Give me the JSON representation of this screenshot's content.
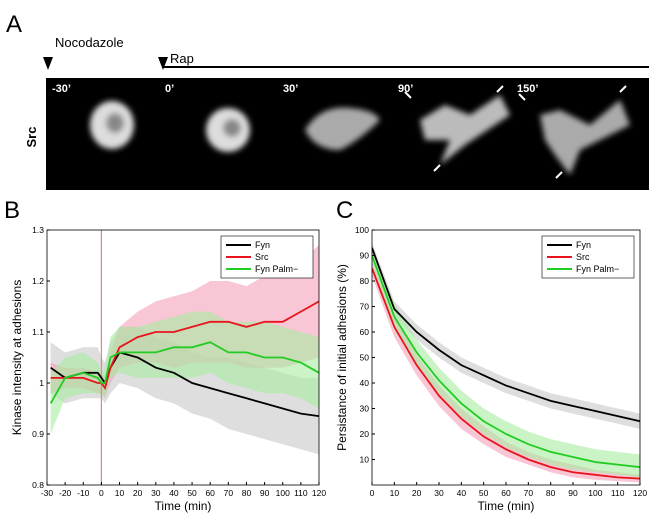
{
  "panel_a": {
    "label": "A",
    "drugs": [
      "Nocodazole",
      "Rap"
    ],
    "row_label": "Src",
    "times": [
      "-30’",
      "0’",
      "30’",
      "90’",
      "150’"
    ]
  },
  "chart_data": [
    {
      "type": "line",
      "panel": "B",
      "x_label": "Time (min)",
      "y_label": "Kinase intensity at adhesions",
      "x": [
        -28,
        -20,
        -10,
        -2,
        0,
        2,
        5,
        10,
        20,
        30,
        40,
        50,
        60,
        70,
        80,
        90,
        100,
        110,
        120
      ],
      "xlim": [
        -30,
        120
      ],
      "xticks": [
        -30,
        -20,
        -10,
        0,
        10,
        20,
        30,
        40,
        50,
        60,
        70,
        80,
        90,
        100,
        110,
        120
      ],
      "ylim": [
        0.8,
        1.3
      ],
      "yticks": [
        0.8,
        0.9,
        1,
        1.1,
        1.2,
        1.3
      ],
      "vline": 0,
      "vline_color": "#e88080",
      "legend": "upper right",
      "series": [
        {
          "name": "Fyn",
          "color": "#000000",
          "band_color": "#c8c8c8",
          "values": [
            1.03,
            1.01,
            1.02,
            1.02,
            1.01,
            1.0,
            1.03,
            1.06,
            1.05,
            1.03,
            1.02,
            1.0,
            0.99,
            0.98,
            0.97,
            0.96,
            0.95,
            0.94,
            0.935
          ],
          "lower": [
            0.98,
            0.96,
            0.97,
            0.97,
            0.97,
            0.96,
            0.98,
            1.0,
            0.99,
            0.97,
            0.96,
            0.94,
            0.93,
            0.91,
            0.9,
            0.89,
            0.88,
            0.87,
            0.86
          ],
          "upper": [
            1.08,
            1.06,
            1.07,
            1.07,
            1.05,
            1.04,
            1.08,
            1.11,
            1.11,
            1.09,
            1.08,
            1.06,
            1.05,
            1.05,
            1.04,
            1.03,
            1.02,
            1.01,
            1.01
          ]
        },
        {
          "name": "Src",
          "color": "#e8141c",
          "band_color": "#f4a0b8",
          "values": [
            1.01,
            1.01,
            1.01,
            1.0,
            1.0,
            0.99,
            1.03,
            1.07,
            1.09,
            1.1,
            1.1,
            1.11,
            1.12,
            1.12,
            1.11,
            1.12,
            1.12,
            1.14,
            1.16
          ],
          "lower": [
            0.98,
            0.99,
            0.99,
            0.98,
            0.98,
            0.97,
            1.0,
            1.03,
            1.04,
            1.04,
            1.03,
            1.04,
            1.04,
            1.04,
            1.03,
            1.03,
            1.03,
            1.04,
            1.05
          ],
          "upper": [
            1.04,
            1.03,
            1.03,
            1.02,
            1.02,
            1.01,
            1.06,
            1.11,
            1.14,
            1.16,
            1.17,
            1.18,
            1.2,
            1.2,
            1.19,
            1.21,
            1.21,
            1.24,
            1.27
          ]
        },
        {
          "name": "Fyn Palm−",
          "color": "#22cc22",
          "band_color": "#a8eca0",
          "values": [
            0.96,
            1.01,
            1.02,
            1.01,
            1.0,
            1.0,
            1.05,
            1.06,
            1.06,
            1.06,
            1.07,
            1.07,
            1.08,
            1.06,
            1.06,
            1.05,
            1.05,
            1.04,
            1.02
          ],
          "lower": [
            0.9,
            0.97,
            0.98,
            0.98,
            0.98,
            0.97,
            1.01,
            1.02,
            1.01,
            1.01,
            1.01,
            1.01,
            1.02,
            1.0,
            0.99,
            0.98,
            0.98,
            0.97,
            0.95
          ],
          "upper": [
            1.02,
            1.05,
            1.06,
            1.04,
            1.02,
            1.03,
            1.09,
            1.11,
            1.11,
            1.12,
            1.13,
            1.14,
            1.14,
            1.12,
            1.12,
            1.12,
            1.11,
            1.1,
            1.09
          ]
        }
      ]
    },
    {
      "type": "line",
      "panel": "C",
      "x_label": "Time (min)",
      "y_label": "Persistance of initial adhesions (%)",
      "x": [
        0,
        10,
        20,
        30,
        40,
        50,
        60,
        70,
        80,
        90,
        100,
        110,
        120
      ],
      "xlim": [
        0,
        120
      ],
      "xticks": [
        0,
        10,
        20,
        30,
        40,
        50,
        60,
        70,
        80,
        90,
        100,
        110,
        120
      ],
      "ylim": [
        0,
        100
      ],
      "yticks": [
        10,
        20,
        30,
        40,
        50,
        60,
        70,
        80,
        90,
        100
      ],
      "legend": "upper right",
      "series": [
        {
          "name": "Fyn",
          "color": "#000000",
          "band_color": "#c8c8c8",
          "values": [
            93,
            69,
            60,
            53,
            47,
            43,
            39,
            36,
            33,
            31,
            29,
            27,
            25
          ],
          "lower": [
            91,
            66,
            57,
            50,
            44,
            40,
            36,
            33,
            30,
            28,
            26,
            24,
            22
          ],
          "upper": [
            95,
            72,
            63,
            56,
            50,
            46,
            42,
            39,
            36,
            34,
            32,
            30,
            28
          ]
        },
        {
          "name": "Src",
          "color": "#e8141c",
          "band_color": "#f4a0b8",
          "values": [
            85,
            62,
            47,
            35,
            26,
            19,
            14,
            10,
            7,
            5,
            4,
            3,
            2.5
          ],
          "lower": [
            82,
            58,
            43,
            31,
            22,
            16,
            11,
            8,
            5,
            3,
            2,
            1.5,
            1
          ],
          "upper": [
            88,
            66,
            51,
            39,
            30,
            23,
            17,
            13,
            10,
            8,
            6,
            5,
            4
          ]
        },
        {
          "name": "Fyn Palm−",
          "color": "#22cc22",
          "band_color": "#a8eca0",
          "values": [
            90,
            66,
            52,
            41,
            32,
            25,
            20,
            16,
            13,
            11,
            9,
            8,
            7
          ],
          "lower": [
            87,
            61,
            47,
            36,
            27,
            20,
            15,
            11,
            8,
            6,
            5,
            4,
            3
          ],
          "upper": [
            93,
            71,
            57,
            46,
            37,
            30,
            25,
            21,
            18,
            16,
            14,
            13,
            12
          ]
        }
      ]
    }
  ]
}
